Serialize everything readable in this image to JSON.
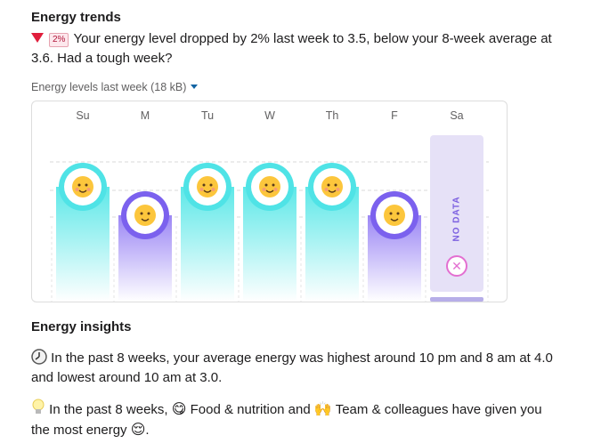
{
  "energy_trends": {
    "title": "Energy trends",
    "change_badge": "2%",
    "summary": "Your energy level dropped by 2% last week to 3.5, below your 8-week average at 3.6. Had a tough week?",
    "dropdown_label": "Energy levels last week (18 kB)"
  },
  "chart_data": {
    "type": "bar",
    "categories": [
      "Su",
      "M",
      "Tu",
      "W",
      "Th",
      "F",
      "Sa"
    ],
    "values": [
      4,
      3,
      4,
      4,
      4,
      3,
      null
    ],
    "value_faces": [
      "relieved",
      "slight-smile",
      "relieved",
      "relieved",
      "relieved",
      "slight-smile",
      "no-data"
    ],
    "no_data_label": "NO DATA",
    "colors": {
      "high": "#5de8e8",
      "low": "#9b86f5",
      "nodata": "#e6e1f7",
      "ring_high": "#4fe3e6",
      "ring_low": "#7b61ee"
    }
  },
  "energy_insights": {
    "title": "Energy insights",
    "clock_text": "In the past 8 weeks, your average energy was highest around 10 pm and 8 am at 4.0 and lowest around 10 am at 3.0.",
    "bulb_text_1": "In the past 8 weeks,",
    "factor_1": "Food & nutrition and",
    "factor_2": "Team & colleagues have given you",
    "bulb_text_2": "the most energy"
  }
}
